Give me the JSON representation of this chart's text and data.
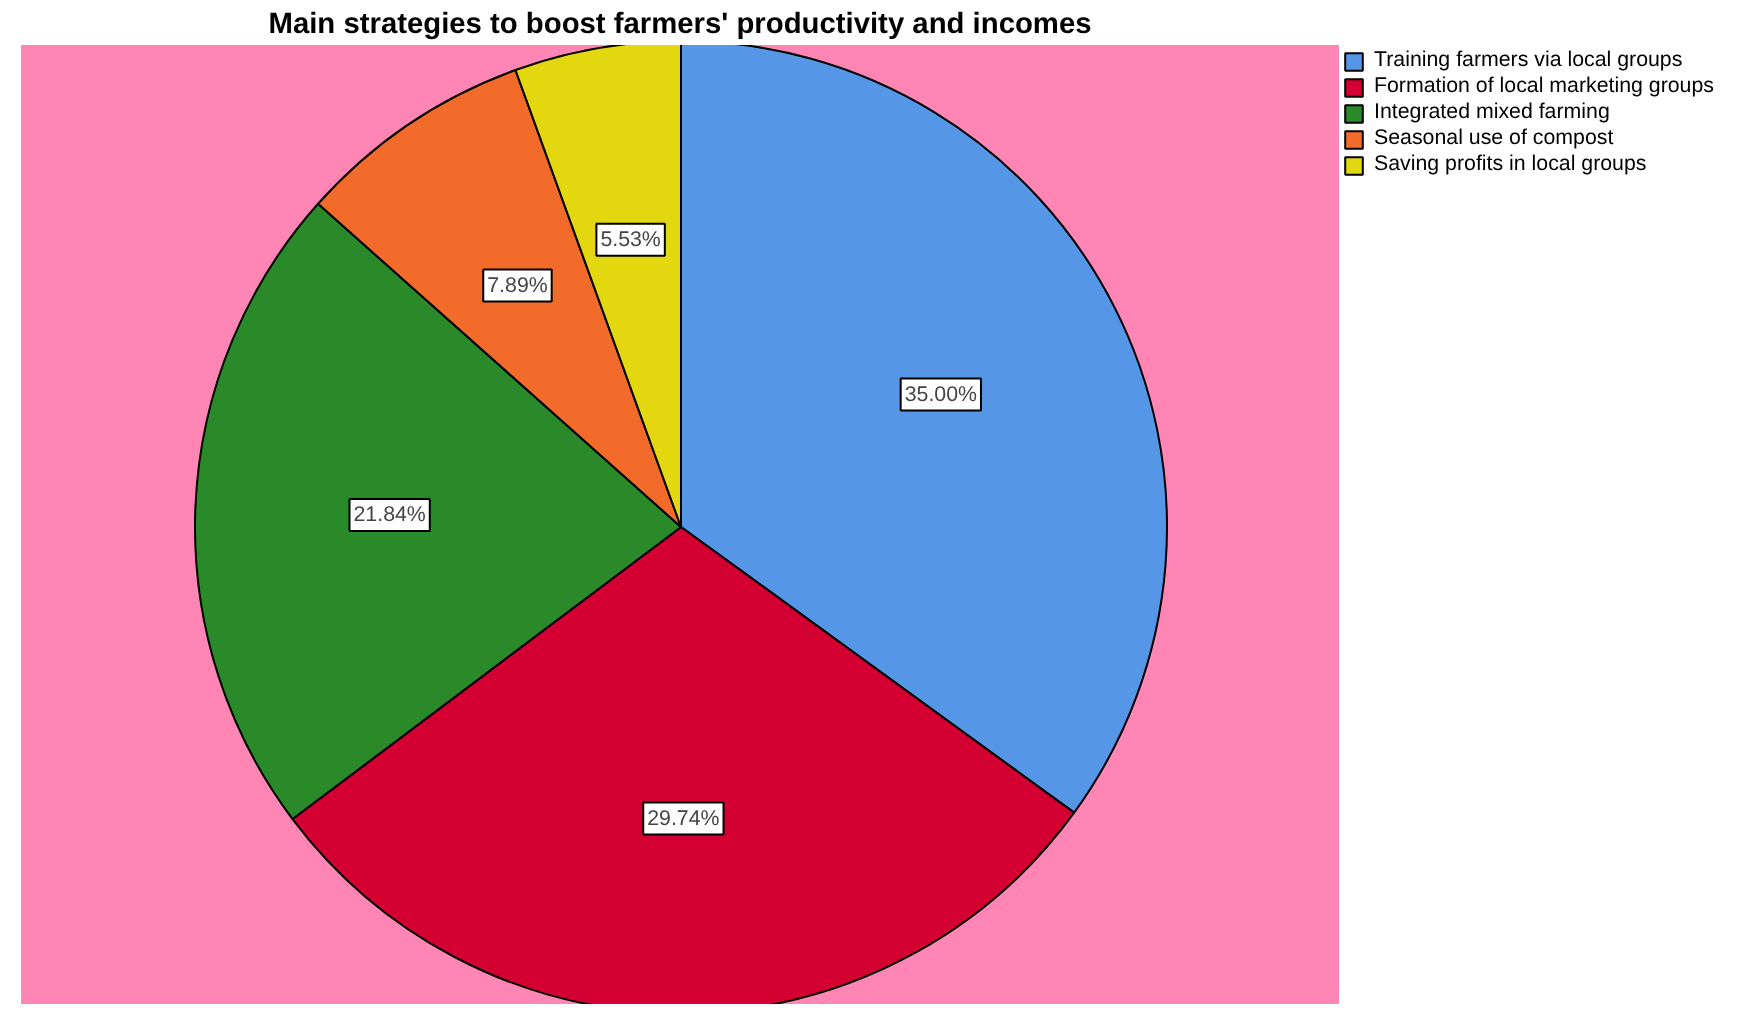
{
  "chart_data": {
    "type": "pie",
    "title": "Main strategies to boost farmers' productivity and incomes",
    "categories": [
      "Training farmers via local groups",
      "Formation of local marketing groups",
      "Integrated mixed farming",
      "Seasonal use of compost",
      "Saving profits in local groups"
    ],
    "values": [
      35.0,
      29.74,
      21.84,
      7.89,
      5.53
    ],
    "value_labels": [
      "35.00%",
      "29.74%",
      "21.84%",
      "7.89%",
      "5.53%"
    ],
    "colors": [
      "#5596e6",
      "#d50032",
      "#2a8a2a",
      "#f26b2b",
      "#e3d80f"
    ],
    "legend": "right"
  }
}
